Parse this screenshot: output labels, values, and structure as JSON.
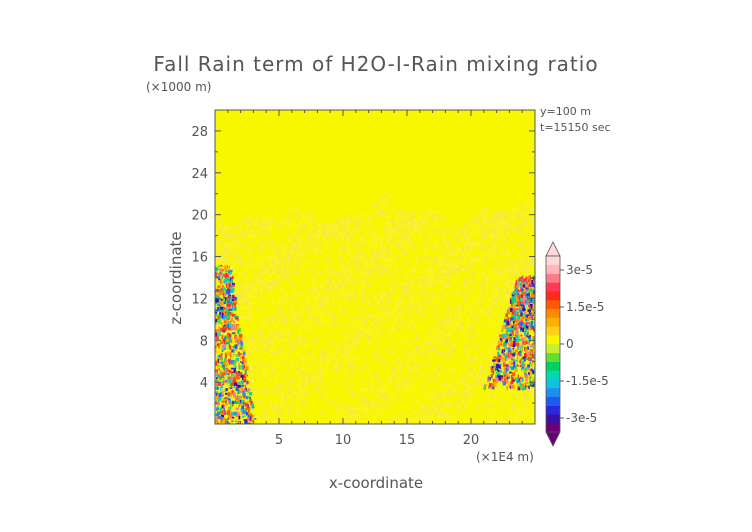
{
  "chart_data": {
    "type": "heatmap",
    "title": "Fall Rain term of H2O-I-Rain mixing ratio",
    "ylabel": "z-coordinate",
    "xlabel": "x-coordinate",
    "y_unit": "(×1000 m)",
    "x_unit": "(×1E4 m)",
    "xlim": [
      0,
      25
    ],
    "ylim": [
      0,
      30
    ],
    "x_ticks": [
      5,
      10,
      15,
      20
    ],
    "y_ticks": [
      4,
      8,
      12,
      16,
      20,
      24,
      28
    ],
    "annotations": [
      "y=100 m",
      "t=15150 sec"
    ],
    "colorbar": {
      "labels": [
        "3e-5",
        "1.5e-5",
        "0",
        "-1.5e-5",
        "-3e-5"
      ],
      "label_values": [
        3e-05,
        1.5e-05,
        0,
        -1.5e-05,
        -3e-05
      ],
      "range": [
        -3e-05,
        3e-05
      ],
      "colors": [
        "#6a0078",
        "#3b0fa0",
        "#2a28d8",
        "#1f5af0",
        "#1e8ef0",
        "#14c0e0",
        "#00d8b0",
        "#00d060",
        "#60e030",
        "#c8f030",
        "#f7f700",
        "#ffd11a",
        "#ffb000",
        "#ff8a00",
        "#ff5a00",
        "#ff2a1a",
        "#ff3a55",
        "#ff7a8a",
        "#ffb6bc",
        "#ffd8dc"
      ]
    },
    "background_value": 0,
    "grid": false
  }
}
